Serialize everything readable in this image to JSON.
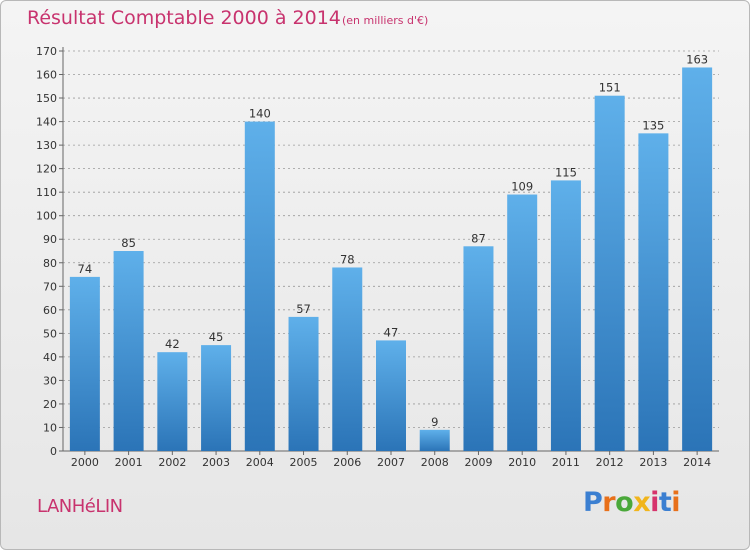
{
  "title": "Résultat Comptable 2000 à 2014",
  "subtitle": "(en milliers d'€)",
  "commune": "LANHéLIN",
  "logo": {
    "text": "Proxiti",
    "letters": [
      {
        "ch": "P",
        "color": "#3b7fd1"
      },
      {
        "ch": "r",
        "color": "#e8701a"
      },
      {
        "ch": "o",
        "color": "#4aa83a"
      },
      {
        "ch": "x",
        "color": "#f1b51c"
      },
      {
        "ch": "i",
        "color": "#d6336c"
      },
      {
        "ch": "t",
        "color": "#3b7fd1"
      },
      {
        "ch": "i",
        "color": "#e8701a"
      }
    ]
  },
  "colors": {
    "bar_top": "#5fb0ea",
    "bar_bottom": "#2b74b7",
    "grid": "#9a9a9a",
    "title": "#c8336e"
  },
  "chart_data": {
    "type": "bar",
    "title": "Résultat Comptable 2000 à 2014",
    "subtitle": "(en milliers d'€)",
    "xlabel": "",
    "ylabel": "",
    "categories": [
      "2000",
      "2001",
      "2002",
      "2003",
      "2004",
      "2005",
      "2006",
      "2007",
      "2008",
      "2009",
      "2010",
      "2011",
      "2012",
      "2013",
      "2014"
    ],
    "values": [
      74,
      85,
      42,
      45,
      140,
      57,
      78,
      47,
      9,
      87,
      109,
      115,
      151,
      135,
      163
    ],
    "ylim": [
      0,
      170
    ],
    "yticks": [
      0,
      10,
      20,
      30,
      40,
      50,
      60,
      70,
      80,
      90,
      100,
      110,
      120,
      130,
      140,
      150,
      160,
      170
    ],
    "grid": true
  }
}
